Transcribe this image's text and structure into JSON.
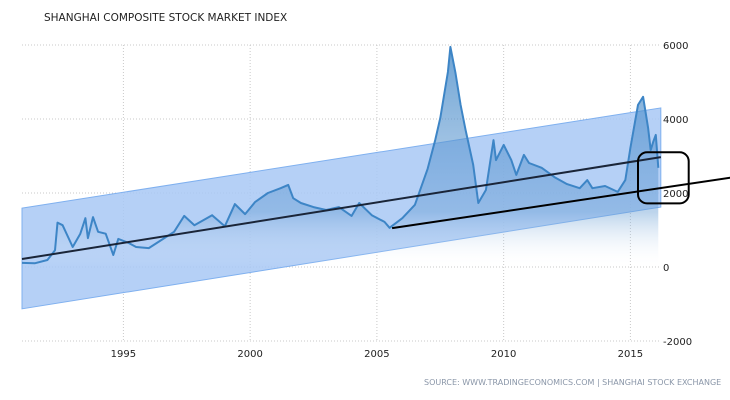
{
  "chart_data": {
    "type": "area",
    "title": "SHANGHAI COMPOSITE STOCK MARKET INDEX",
    "source": "SOURCE: WWW.TRADINGECONOMICS.COM | SHANGHAI STOCK EXCHANGE",
    "xlim": [
      1991,
      2016.1
    ],
    "ylim": [
      -2000,
      6000
    ],
    "x_ticks": [
      "1995",
      "2000",
      "2005",
      "2010",
      "2015"
    ],
    "x_tick_values": [
      1995,
      2000,
      2005,
      2010,
      2015
    ],
    "y_ticks": [
      "6000",
      "4000",
      "2000",
      "0",
      "-2000"
    ],
    "y_tick_values": [
      6000,
      4000,
      2000,
      0,
      -2000
    ],
    "y_axis_side": "right",
    "grid": true,
    "colors": {
      "series": "#3d85c6",
      "band": "#a8c8f4",
      "trend": "#1a2538",
      "annotation": "#000000"
    },
    "series": [
      {
        "points": [
          [
            1991.0,
            110
          ],
          [
            1991.5,
            100
          ],
          [
            1992.0,
            190
          ],
          [
            1992.3,
            450
          ],
          [
            1992.4,
            1200
          ],
          [
            1992.6,
            1130
          ],
          [
            1993.0,
            540
          ],
          [
            1993.3,
            900
          ],
          [
            1993.5,
            1320
          ],
          [
            1993.6,
            780
          ],
          [
            1993.8,
            1350
          ],
          [
            1994.0,
            950
          ],
          [
            1994.3,
            900
          ],
          [
            1994.6,
            325
          ],
          [
            1994.8,
            760
          ],
          [
            1995.2,
            650
          ],
          [
            1995.5,
            540
          ],
          [
            1996.0,
            510
          ],
          [
            1996.5,
            730
          ],
          [
            1997.0,
            950
          ],
          [
            1997.4,
            1380
          ],
          [
            1997.8,
            1130
          ],
          [
            1998.5,
            1400
          ],
          [
            1999.0,
            1100
          ],
          [
            1999.4,
            1700
          ],
          [
            1999.8,
            1430
          ],
          [
            2000.2,
            1760
          ],
          [
            2000.7,
            2000
          ],
          [
            2001.2,
            2130
          ],
          [
            2001.5,
            2220
          ],
          [
            2001.7,
            1860
          ],
          [
            2002.0,
            1730
          ],
          [
            2002.5,
            1620
          ],
          [
            2003.0,
            1540
          ],
          [
            2003.5,
            1620
          ],
          [
            2004.0,
            1380
          ],
          [
            2004.3,
            1730
          ],
          [
            2004.8,
            1400
          ],
          [
            2005.3,
            1220
          ],
          [
            2005.5,
            1060
          ],
          [
            2006.0,
            1320
          ],
          [
            2006.5,
            1680
          ],
          [
            2007.0,
            2650
          ],
          [
            2007.3,
            3430
          ],
          [
            2007.5,
            4030
          ],
          [
            2007.8,
            5270
          ],
          [
            2007.9,
            5950
          ],
          [
            2008.1,
            5240
          ],
          [
            2008.3,
            4380
          ],
          [
            2008.5,
            3700
          ],
          [
            2008.8,
            2760
          ],
          [
            2009.0,
            1730
          ],
          [
            2009.3,
            2080
          ],
          [
            2009.6,
            3430
          ],
          [
            2009.7,
            2890
          ],
          [
            2010.0,
            3300
          ],
          [
            2010.3,
            2890
          ],
          [
            2010.5,
            2490
          ],
          [
            2010.8,
            3030
          ],
          [
            2011.0,
            2810
          ],
          [
            2011.5,
            2680
          ],
          [
            2012.0,
            2430
          ],
          [
            2012.5,
            2240
          ],
          [
            2013.0,
            2130
          ],
          [
            2013.3,
            2350
          ],
          [
            2013.5,
            2130
          ],
          [
            2014.0,
            2190
          ],
          [
            2014.5,
            2030
          ],
          [
            2014.8,
            2350
          ],
          [
            2015.0,
            3220
          ],
          [
            2015.3,
            4380
          ],
          [
            2015.5,
            4600
          ],
          [
            2015.7,
            3760
          ],
          [
            2015.8,
            3160
          ],
          [
            2015.9,
            3380
          ],
          [
            2016.0,
            3570
          ],
          [
            2016.1,
            2680
          ]
        ]
      }
    ],
    "band": {
      "start": [
        1991.0,
        -1130,
        1590
      ],
      "end": [
        2016.2,
        1620,
        4300
      ]
    },
    "trend_lines": [
      {
        "from": [
          1991.0,
          215
        ],
        "to": [
          2016.2,
          2970
        ]
      },
      {
        "from": [
          2005.6,
          1050
        ],
        "to": [
          2019.1,
          2430
        ]
      }
    ],
    "highlight_box": {
      "x_range": [
        2015.3,
        2017.3
      ],
      "y_range": [
        1720,
        3100
      ]
    }
  }
}
